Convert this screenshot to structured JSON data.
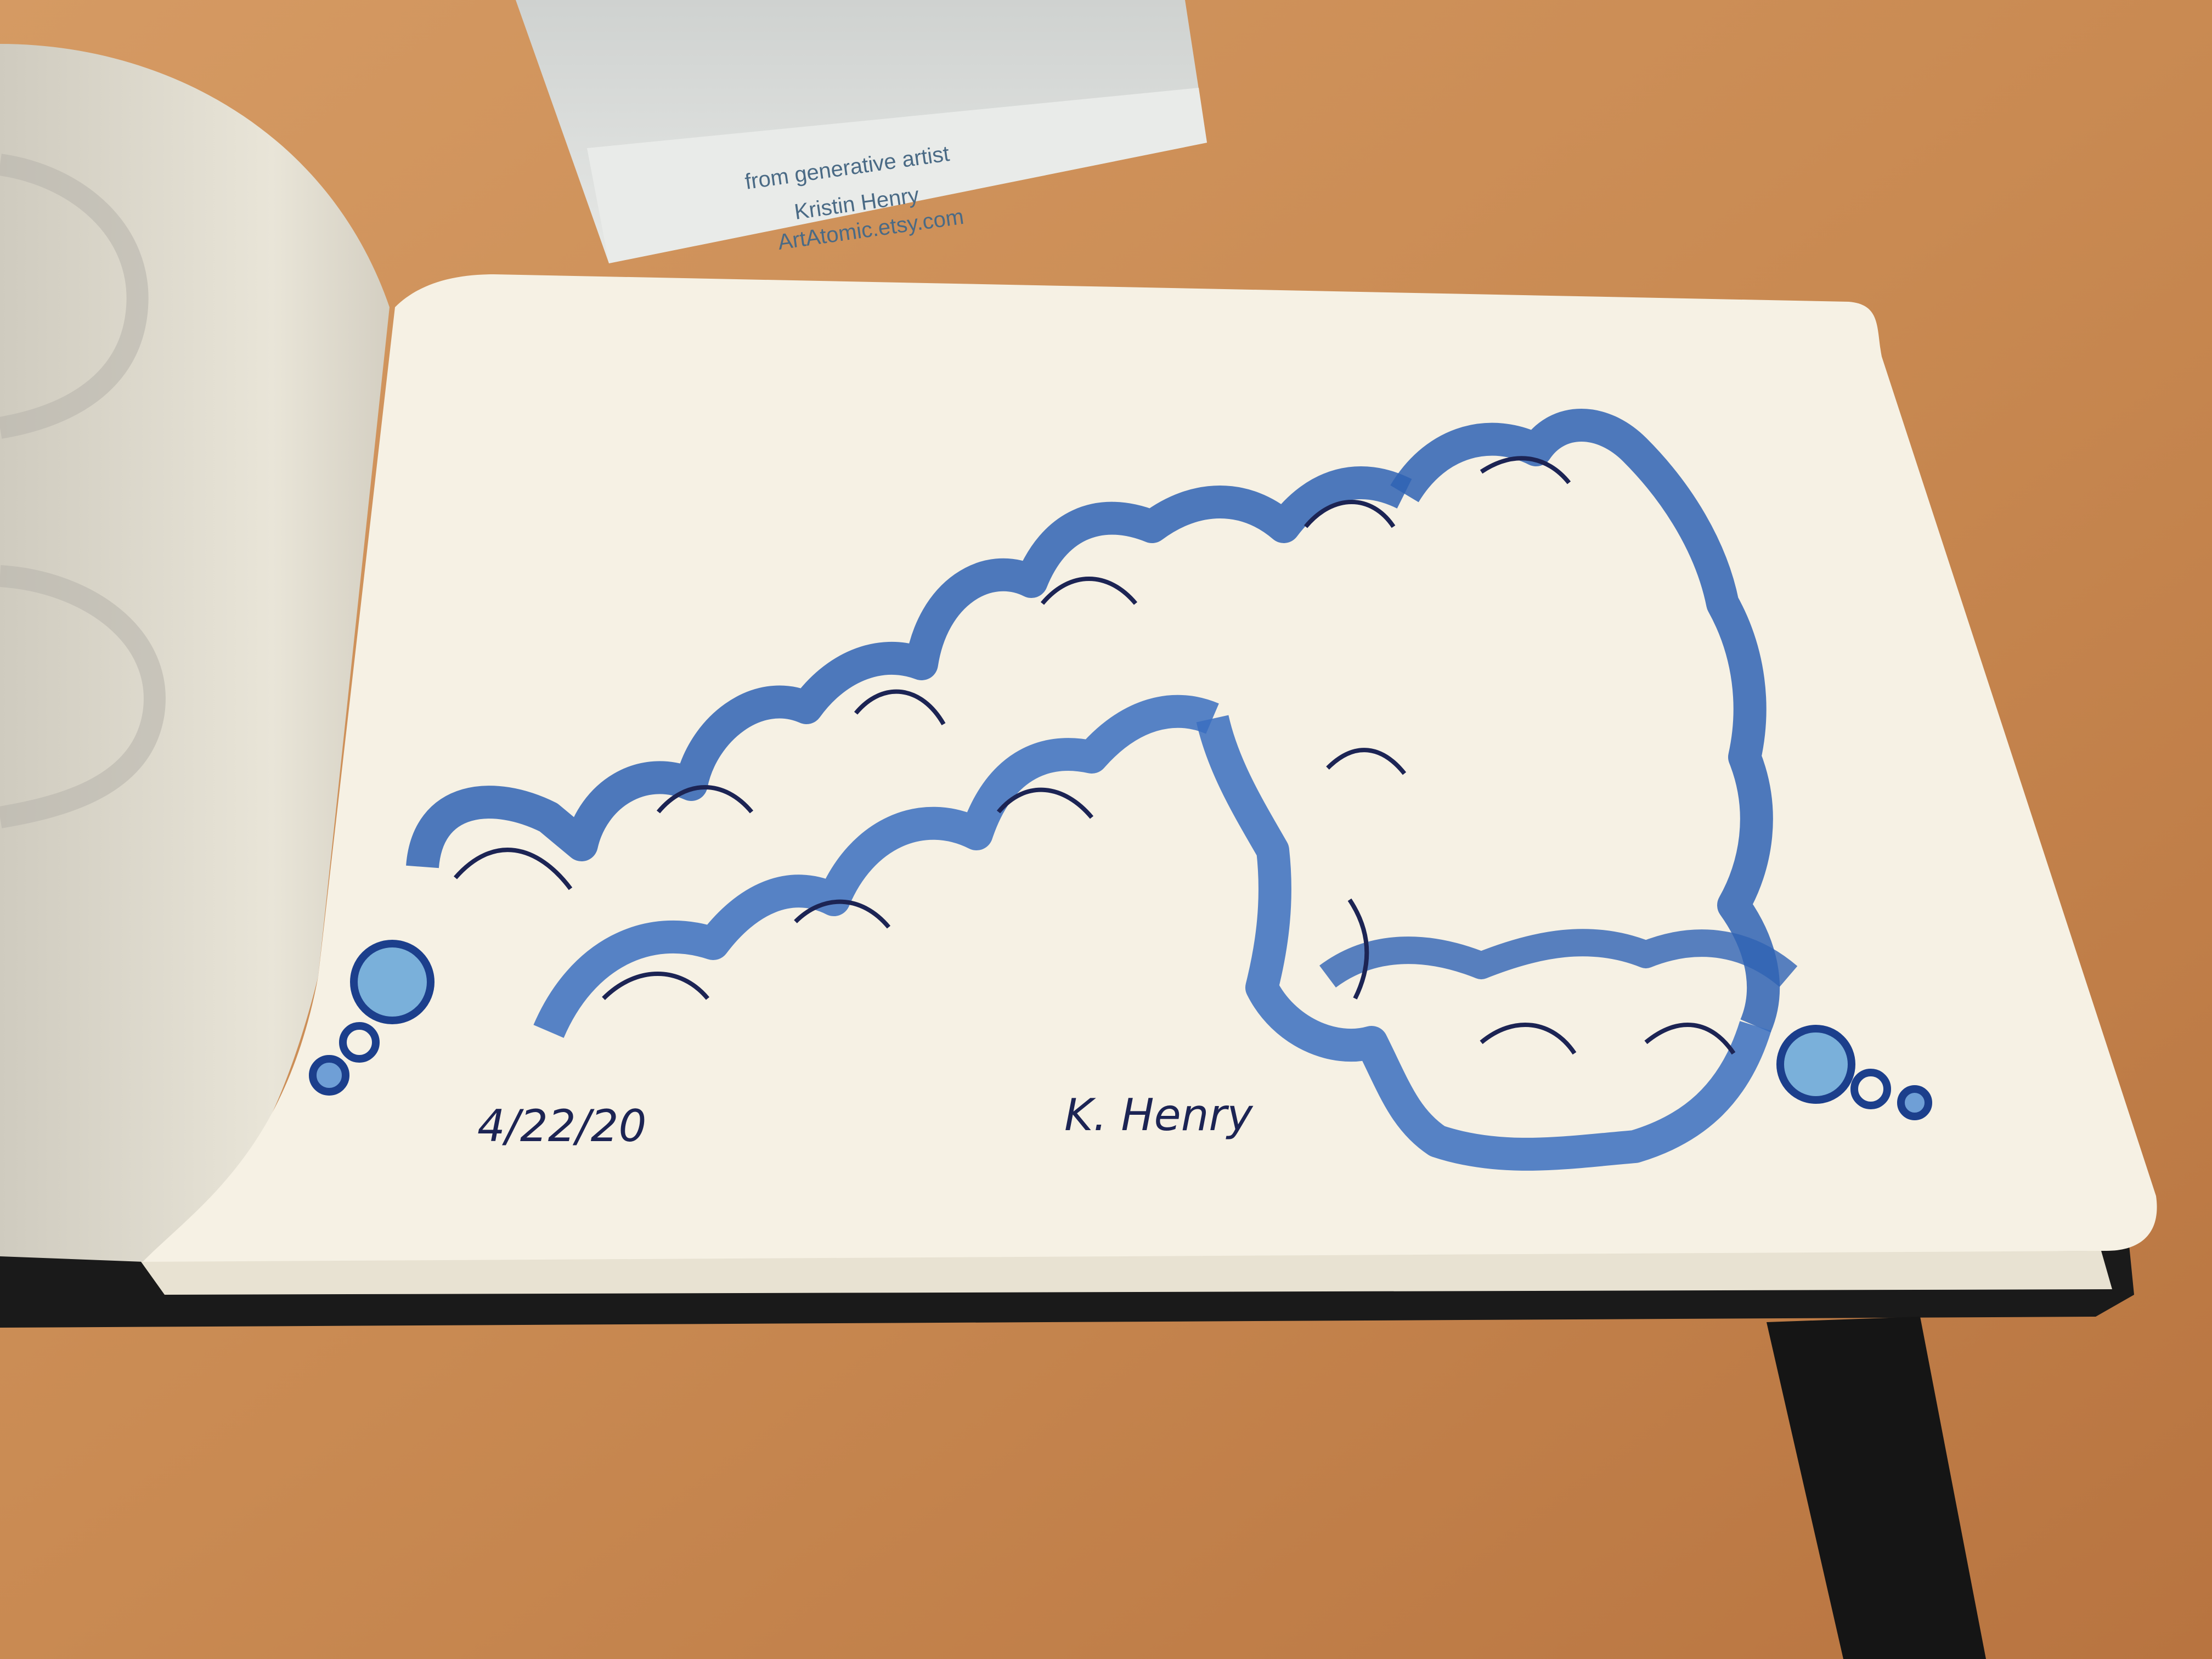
{
  "card": {
    "line1": "from generative artist",
    "line2": "Kristin Henry",
    "line3": "ArtAtomic.etsy.com"
  },
  "sketchbook": {
    "date": "4/22/20",
    "signature": "K. Henry"
  },
  "colors": {
    "table": "#c98a52",
    "paper": "#f6f1e4",
    "ink_outline": "#1c3f8c",
    "ink_fill": "#6f9fd6",
    "pen": "#1c2454",
    "cover": "#1a1a1a"
  },
  "drawing": {
    "subject": "wavy ribbon zentangle pattern",
    "icons": [
      "bead-icon",
      "bead-icon"
    ]
  }
}
